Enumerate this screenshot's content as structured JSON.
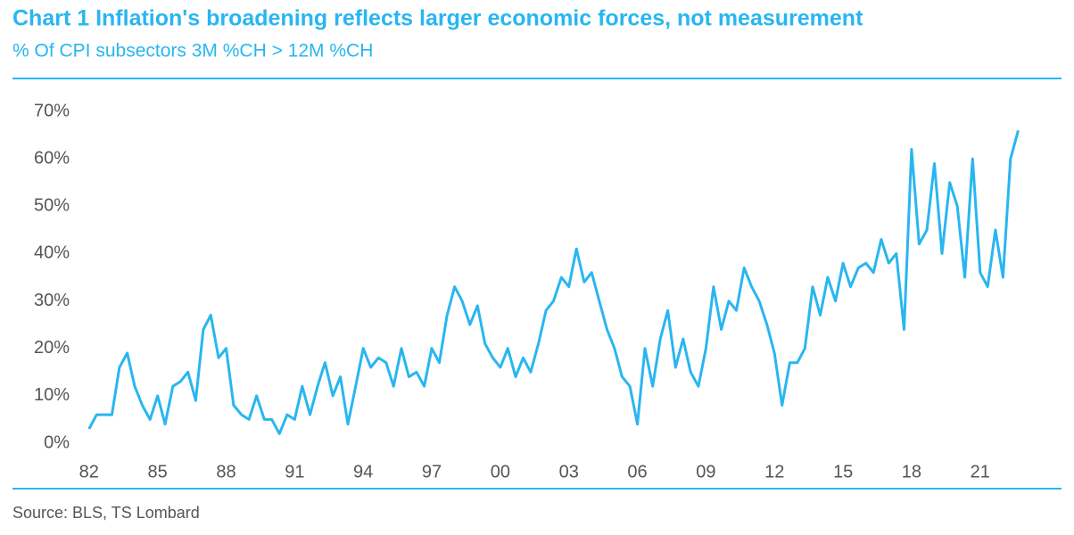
{
  "chart_data": {
    "type": "line",
    "title": "Chart 1 Inflation's broadening reflects larger economic forces, not measurement",
    "subtitle": "% Of CPI subsectors 3M %CH > 12M %CH",
    "source": "Source: BLS, TS Lombard",
    "x": [
      1982,
      1982.33,
      1982.67,
      1983,
      1983.33,
      1983.67,
      1984,
      1984.33,
      1984.67,
      1985,
      1985.33,
      1985.67,
      1986,
      1986.33,
      1986.67,
      1987,
      1987.33,
      1987.67,
      1988,
      1988.33,
      1988.67,
      1989,
      1989.33,
      1989.67,
      1990,
      1990.33,
      1990.67,
      1991,
      1991.33,
      1991.67,
      1992,
      1992.33,
      1992.67,
      1993,
      1993.33,
      1993.67,
      1994,
      1994.33,
      1994.67,
      1995,
      1995.33,
      1995.67,
      1996,
      1996.33,
      1996.67,
      1997,
      1997.33,
      1997.67,
      1998,
      1998.33,
      1998.67,
      1999,
      1999.33,
      1999.67,
      2000,
      2000.33,
      2000.67,
      2001,
      2001.33,
      2001.67,
      2002,
      2002.33,
      2002.67,
      2003,
      2003.33,
      2003.67,
      2004,
      2004.33,
      2004.67,
      2005,
      2005.33,
      2005.67,
      2006,
      2006.33,
      2006.67,
      2007,
      2007.33,
      2007.67,
      2008,
      2008.33,
      2008.67,
      2009,
      2009.33,
      2009.67,
      2010,
      2010.33,
      2010.67,
      2011,
      2011.33,
      2011.67,
      2012,
      2012.33,
      2012.67,
      2013,
      2013.33,
      2013.67,
      2014,
      2014.33,
      2014.67,
      2015,
      2015.33,
      2015.67,
      2016,
      2016.33,
      2016.67,
      2017,
      2017.33,
      2017.67,
      2018,
      2018.33,
      2018.67,
      2019,
      2019.33,
      2019.67,
      2020,
      2020.33,
      2020.67,
      2021,
      2021.33,
      2021.67,
      2022,
      2022.33,
      2022.67
    ],
    "series": [
      {
        "name": "% Of CPI subsectors",
        "color": "#29b6f0",
        "values": [
          3,
          6,
          6,
          6,
          16,
          19,
          12,
          8,
          5,
          10,
          4,
          12,
          13,
          15,
          9,
          24,
          27,
          18,
          20,
          8,
          6,
          5,
          10,
          5,
          5,
          2,
          6,
          5,
          12,
          6,
          12,
          17,
          10,
          14,
          4,
          12,
          20,
          16,
          18,
          17,
          12,
          20,
          14,
          15,
          12,
          20,
          17,
          27,
          33,
          30,
          25,
          29,
          21,
          18,
          16,
          20,
          14,
          18,
          15,
          21,
          28,
          30,
          35,
          33,
          41,
          34,
          36,
          30,
          24,
          20,
          14,
          12,
          4,
          20,
          12,
          22,
          28,
          16,
          22,
          15,
          12,
          20,
          33,
          24,
          30,
          28,
          37,
          33,
          30,
          25,
          19,
          8,
          17,
          17,
          20,
          33,
          27,
          35,
          30,
          38,
          33,
          37,
          38,
          36,
          43,
          38,
          40,
          24,
          62,
          42,
          45,
          59,
          40,
          55,
          50,
          35,
          60,
          36,
          33,
          45,
          35,
          60,
          66
        ]
      }
    ],
    "xlim": [
      1981.5,
      2023
    ],
    "xticks": [
      {
        "value": 1982,
        "label": "82"
      },
      {
        "value": 1985,
        "label": "85"
      },
      {
        "value": 1988,
        "label": "88"
      },
      {
        "value": 1991,
        "label": "91"
      },
      {
        "value": 1994,
        "label": "94"
      },
      {
        "value": 1997,
        "label": "97"
      },
      {
        "value": 2000,
        "label": "00"
      },
      {
        "value": 2003,
        "label": "03"
      },
      {
        "value": 2006,
        "label": "06"
      },
      {
        "value": 2009,
        "label": "09"
      },
      {
        "value": 2012,
        "label": "12"
      },
      {
        "value": 2015,
        "label": "15"
      },
      {
        "value": 2018,
        "label": "18"
      },
      {
        "value": 2021,
        "label": "21"
      }
    ],
    "ylim": [
      0,
      70
    ],
    "yticks": [
      {
        "value": 0,
        "label": "0%"
      },
      {
        "value": 10,
        "label": "10%"
      },
      {
        "value": 20,
        "label": "20%"
      },
      {
        "value": 30,
        "label": "30%"
      },
      {
        "value": 40,
        "label": "40%"
      },
      {
        "value": 50,
        "label": "50%"
      },
      {
        "value": 60,
        "label": "60%"
      },
      {
        "value": 70,
        "label": "70%"
      }
    ],
    "grid": false
  }
}
